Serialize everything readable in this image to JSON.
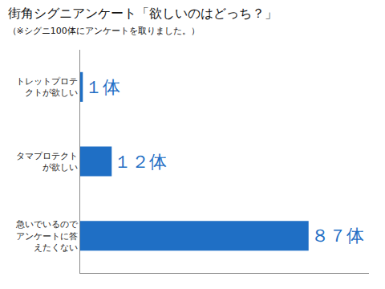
{
  "chart_data": {
    "type": "bar",
    "orientation": "horizontal",
    "title": "街角シグニアンケート「欲しいのはどっち？」",
    "subtitle": "（※シグニ100体にアンケートを取りました。）",
    "categories": [
      "トレットプロテクトが欲しい",
      "タマプロテクトが欲しい",
      "急いでいるのでアンケートに答えたくない"
    ],
    "values": [
      1,
      12,
      87
    ],
    "value_labels": [
      "１体",
      "１２体",
      "８７体"
    ],
    "data_labels": true,
    "color": "#1f6fc5",
    "xlim": [
      0,
      110
    ],
    "grid": false,
    "tick_labels": "y"
  }
}
